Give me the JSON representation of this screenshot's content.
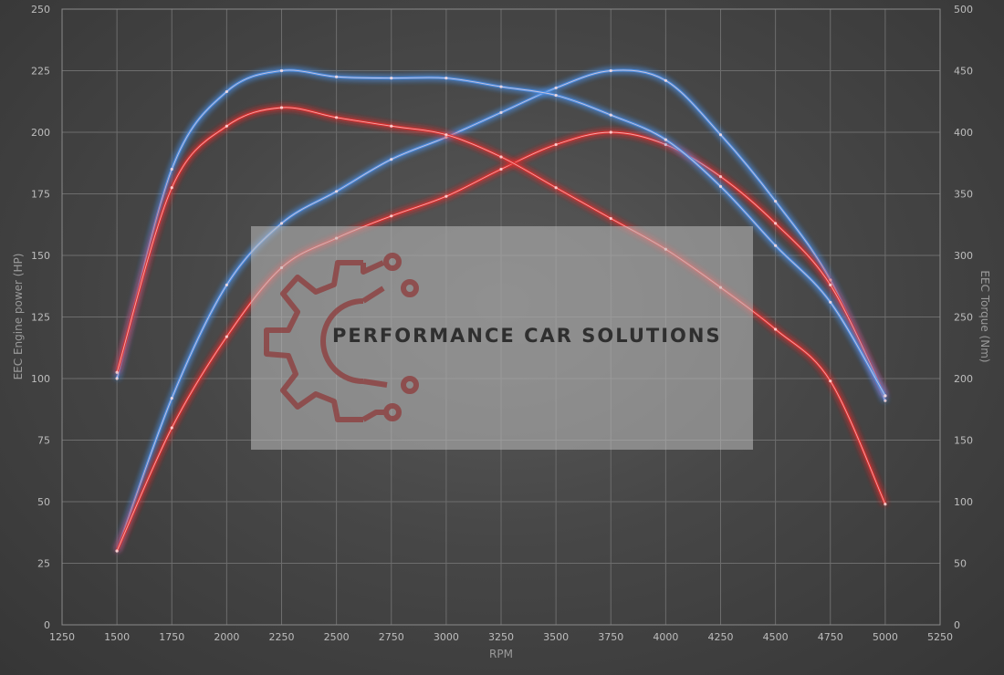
{
  "chart_data": {
    "type": "line",
    "title": "",
    "xlabel": "RPM",
    "ylabel": "EEC Engine power (HP)",
    "y2label": "EEC Torque (Nm)",
    "xlim": [
      1250,
      5250
    ],
    "ylim": [
      0,
      250
    ],
    "y2lim": [
      0,
      500
    ],
    "xticks": [
      "1250",
      "1500",
      "1750",
      "2000",
      "2250",
      "2500",
      "2750",
      "3000",
      "3250",
      "3500",
      "3750",
      "4000",
      "4250",
      "4500",
      "4750",
      "5000",
      "5250"
    ],
    "yticks": [
      "0",
      "25",
      "50",
      "75",
      "100",
      "125",
      "150",
      "175",
      "200",
      "225",
      "250"
    ],
    "y2ticks": [
      "0",
      "50",
      "100",
      "150",
      "200",
      "250",
      "300",
      "350",
      "400",
      "450",
      "500"
    ],
    "grid": true,
    "watermark": "PERFORMANCE CAR SOLUTIONS",
    "series": [
      {
        "color": "#4a90e8",
        "axis": "left",
        "x": [
          1500,
          1750,
          2000,
          2250,
          2500,
          2750,
          3000,
          3250,
          3500,
          3750,
          4000,
          4250,
          4500,
          4750,
          5000
        ],
        "values": [
          30,
          92,
          138,
          163,
          176,
          189,
          198,
          208,
          218,
          225,
          221,
          199,
          172,
          140,
          91
        ]
      },
      {
        "color": "#e03030",
        "axis": "left",
        "x": [
          1500,
          1750,
          2000,
          2250,
          2500,
          2750,
          3000,
          3250,
          3500,
          3750,
          4000,
          4250,
          4500,
          4750,
          5000
        ],
        "values": [
          30,
          80,
          117,
          145,
          157,
          166,
          174,
          185,
          195,
          200,
          195,
          182,
          163,
          138,
          93
        ]
      },
      {
        "color": "#4a90e8",
        "axis": "right",
        "x": [
          1500,
          1750,
          2000,
          2250,
          2500,
          2750,
          3000,
          3250,
          3500,
          3750,
          4000,
          4250,
          4500,
          4750,
          5000
        ],
        "values": [
          200,
          370,
          433,
          450,
          445,
          444,
          444,
          437,
          430,
          414,
          394,
          356,
          308,
          262,
          186
        ]
      },
      {
        "color": "#e03030",
        "axis": "right",
        "x": [
          1500,
          1750,
          2000,
          2250,
          2500,
          2750,
          3000,
          3250,
          3500,
          3750,
          4000,
          4250,
          4500,
          4750,
          5000
        ],
        "values": [
          205,
          355,
          405,
          420,
          412,
          405,
          398,
          380,
          355,
          330,
          305,
          274,
          240,
          198,
          98
        ]
      }
    ]
  }
}
